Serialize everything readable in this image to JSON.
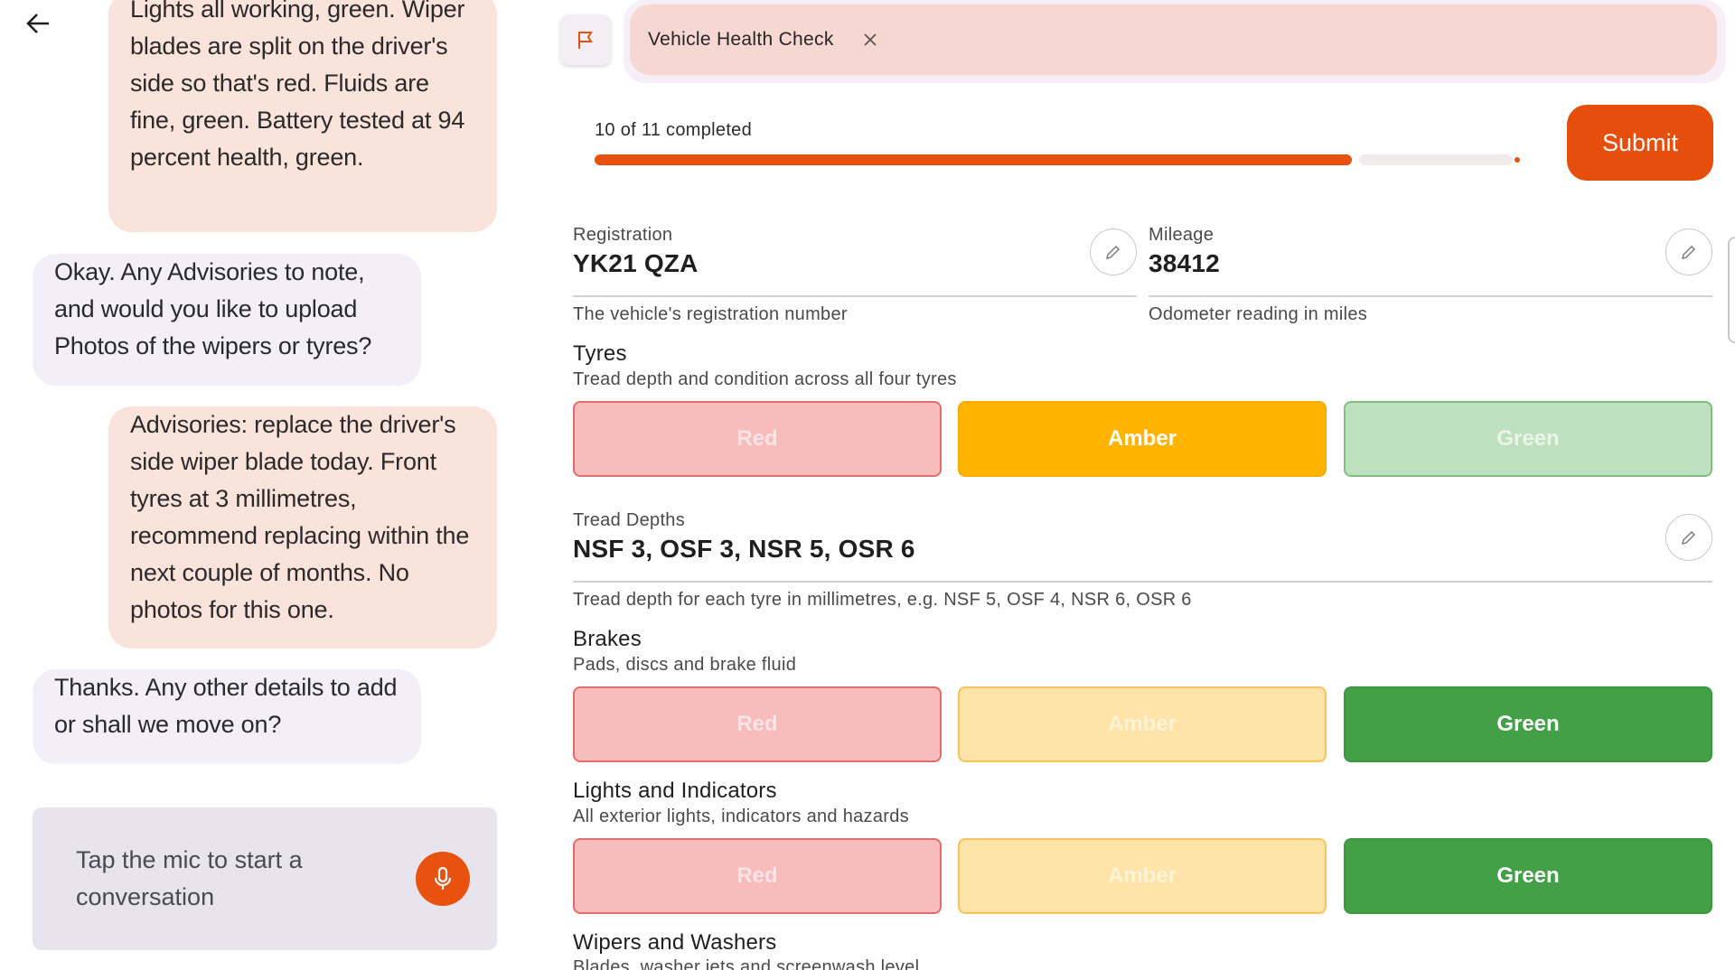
{
  "chat": {
    "messages": [
      {
        "role": "user",
        "text": "Lights all working, green. Wiper blades are split on the driver's side so that's red. Fluids are fine, green. Battery tested at 94 percent health, green."
      },
      {
        "role": "assistant",
        "text": "Okay. Any Advisories to note, and would you like to upload Photos of the wipers or tyres?"
      },
      {
        "role": "user",
        "text": "Advisories: replace the driver's side wiper blade today. Front tyres at 3 millimetres, recommend replacing within the next couple of months. No photos for this one."
      },
      {
        "role": "assistant",
        "text": "Thanks. Any other details to add or shall we move on?"
      }
    ],
    "mic_prompt": "Tap the mic to start a conversation"
  },
  "header": {
    "tab_label": "Vehicle Health Check"
  },
  "progress": {
    "text": "10 of 11 completed",
    "completed": 10,
    "total": 11
  },
  "submit_label": "Submit",
  "fields": {
    "registration": {
      "label": "Registration",
      "value": "YK21 QZA",
      "help": "The vehicle's registration number"
    },
    "mileage": {
      "label": "Mileage",
      "value": "38412",
      "help": "Odometer reading in miles"
    },
    "tread_depths": {
      "label": "Tread Depths",
      "value": "NSF 3, OSF 3, NSR 5, OSR 6",
      "help": "Tread depth for each tyre in millimetres, e.g. NSF 5, OSF 4, NSR 6, OSR 6"
    }
  },
  "checks": {
    "tyres": {
      "title": "Tyres",
      "subtitle": "Tread depth and condition across all four tyres",
      "selected": "Amber"
    },
    "brakes": {
      "title": "Brakes",
      "subtitle": "Pads, discs and brake fluid",
      "selected": "Green"
    },
    "lights": {
      "title": "Lights and Indicators",
      "subtitle": "All exterior lights, indicators and hazards",
      "selected": "Green"
    },
    "wipers": {
      "title": "Wipers and Washers",
      "subtitle": "Blades, washer jets and screenwash level"
    }
  },
  "rag_labels": {
    "red": "Red",
    "amber": "Amber",
    "green": "Green"
  },
  "colors": {
    "accent": "#e8510e",
    "amber": "#feb400",
    "green": "#43a047",
    "red_muted": "#f8bcbc"
  }
}
